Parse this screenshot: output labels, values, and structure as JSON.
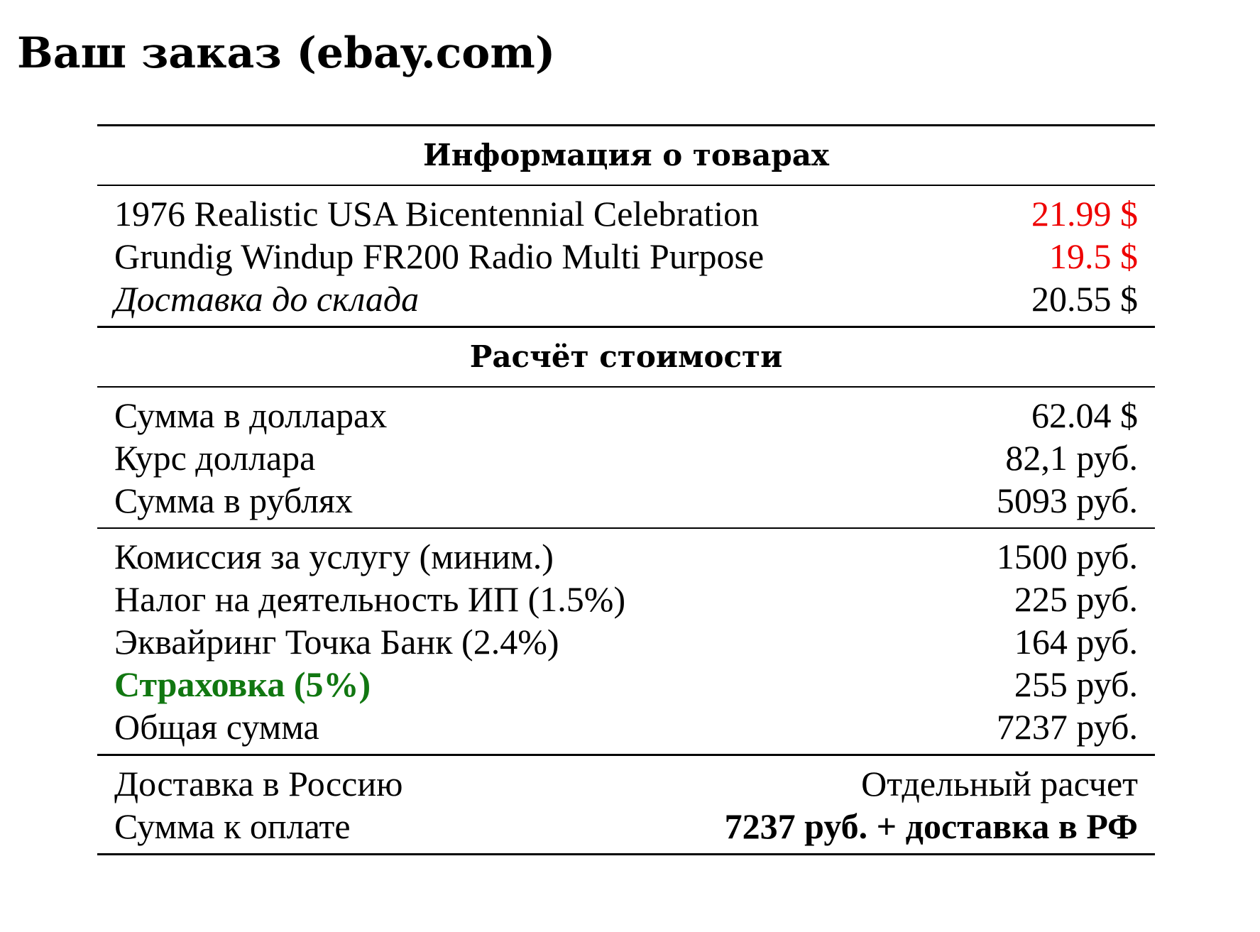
{
  "title": "Ваш заказ (ebay.com)",
  "colors": {
    "price_highlight": "#ee0000",
    "insurance_label": "#117711",
    "text": "#000000"
  },
  "products": {
    "heading": "Информация о товарах",
    "items": [
      {
        "label": "1976 Realistic USA Bicentennial Celebration",
        "value": "21.99 $"
      },
      {
        "label": "Grundig Windup FR200 Radio Multi Purpose",
        "value": "19.5 $"
      }
    ],
    "warehouse_delivery": {
      "label": "Доставка до склада",
      "value": "20.55 $"
    }
  },
  "calculation": {
    "heading": "Расчёт стоимости",
    "conversion": [
      {
        "label": "Сумма в долларах",
        "value": "62.04 $"
      },
      {
        "label": "Курс доллара",
        "value": "82,1 руб."
      },
      {
        "label": "Сумма в рублях",
        "value": "5093 руб."
      }
    ],
    "fees": [
      {
        "label": "Комиссия за услугу (миним.)",
        "value": "1500 руб."
      },
      {
        "label": "Налог на деятельность ИП (1.5%)",
        "value": "225 руб."
      },
      {
        "label": "Эквайринг Точка Банк (2.4%)",
        "value": "164 руб."
      },
      {
        "label": "Страховка (5%)",
        "value": "255 руб."
      },
      {
        "label": "Общая сумма",
        "value": "7237 руб."
      }
    ]
  },
  "final": {
    "delivery_russia": {
      "label": "Доставка в Россию",
      "value": "Отдельный расчет"
    },
    "amount_due": {
      "label": "Сумма к оплате",
      "value": "7237 руб. + доставка в РФ"
    }
  }
}
